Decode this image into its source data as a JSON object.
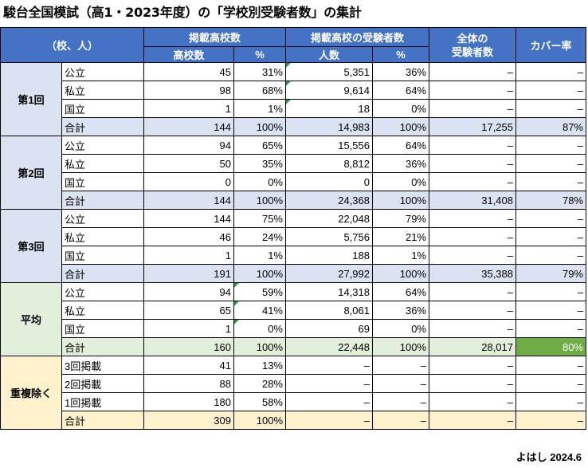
{
  "title": "駿台全国模試（高1・2023年度）の「学校別受験者数」の集計",
  "header": {
    "corner": "（校、人）",
    "listed_schools": "掲載高校数",
    "listed_examinees": "掲載高校の受験者数",
    "total_examinees": "全体の\n受験者数",
    "coverage": "カバー率",
    "sub_schools": "高校数",
    "sub_pct1": "%",
    "sub_people": "人数",
    "sub_pct2": "%"
  },
  "groups": [
    {
      "name": "第1回",
      "rows": [
        [
          "公立",
          "45",
          "31%",
          "5,351",
          "36%",
          "–",
          "–"
        ],
        [
          "私立",
          "98",
          "68%",
          "9,614",
          "64%",
          "–",
          "–"
        ],
        [
          "国立",
          "1",
          "1%",
          "18",
          "0%",
          "–",
          "–"
        ],
        [
          "合計",
          "144",
          "100%",
          "14,983",
          "100%",
          "17,255",
          "87%"
        ]
      ]
    },
    {
      "name": "第2回",
      "rows": [
        [
          "公立",
          "94",
          "65%",
          "15,556",
          "64%",
          "–",
          "–"
        ],
        [
          "私立",
          "50",
          "35%",
          "8,812",
          "36%",
          "–",
          "–"
        ],
        [
          "国立",
          "0",
          "0%",
          "0",
          "0%",
          "–",
          "–"
        ],
        [
          "合計",
          "144",
          "100%",
          "24,368",
          "100%",
          "31,408",
          "78%"
        ]
      ]
    },
    {
      "name": "第3回",
      "rows": [
        [
          "公立",
          "144",
          "75%",
          "22,048",
          "79%",
          "–",
          "–"
        ],
        [
          "私立",
          "46",
          "24%",
          "5,756",
          "21%",
          "–",
          "–"
        ],
        [
          "国立",
          "1",
          "1%",
          "188",
          "1%",
          "–",
          "–"
        ],
        [
          "合計",
          "191",
          "100%",
          "27,992",
          "100%",
          "35,388",
          "79%"
        ]
      ]
    },
    {
      "name": "平均",
      "rows": [
        [
          "公立",
          "94",
          "59%",
          "14,318",
          "64%",
          "–",
          "–"
        ],
        [
          "私立",
          "65",
          "41%",
          "8,061",
          "36%",
          "–",
          "–"
        ],
        [
          "国立",
          "1",
          "0%",
          "69",
          "0%",
          "–",
          "–"
        ],
        [
          "合計",
          "160",
          "100%",
          "22,448",
          "100%",
          "28,017",
          "80%"
        ]
      ]
    },
    {
      "name": "重複除く",
      "rows": [
        [
          "3回掲載",
          "41",
          "13%",
          "–",
          "–",
          "–",
          "–"
        ],
        [
          "2回掲載",
          "88",
          "28%",
          "–",
          "–",
          "–",
          "–"
        ],
        [
          "1回掲載",
          "180",
          "58%",
          "–",
          "–",
          "–",
          "–"
        ],
        [
          "合計",
          "309",
          "100%",
          "–",
          "–",
          "–",
          "–"
        ]
      ]
    }
  ],
  "footer": "よはし 2024.6",
  "colors": {
    "header": "#4472c4",
    "group_blue": "#dbe2f1",
    "group_green": "#e2efda",
    "group_yellow": "#fff2cc",
    "highlight": "#70ad47",
    "marker": "#1f9d3a"
  }
}
